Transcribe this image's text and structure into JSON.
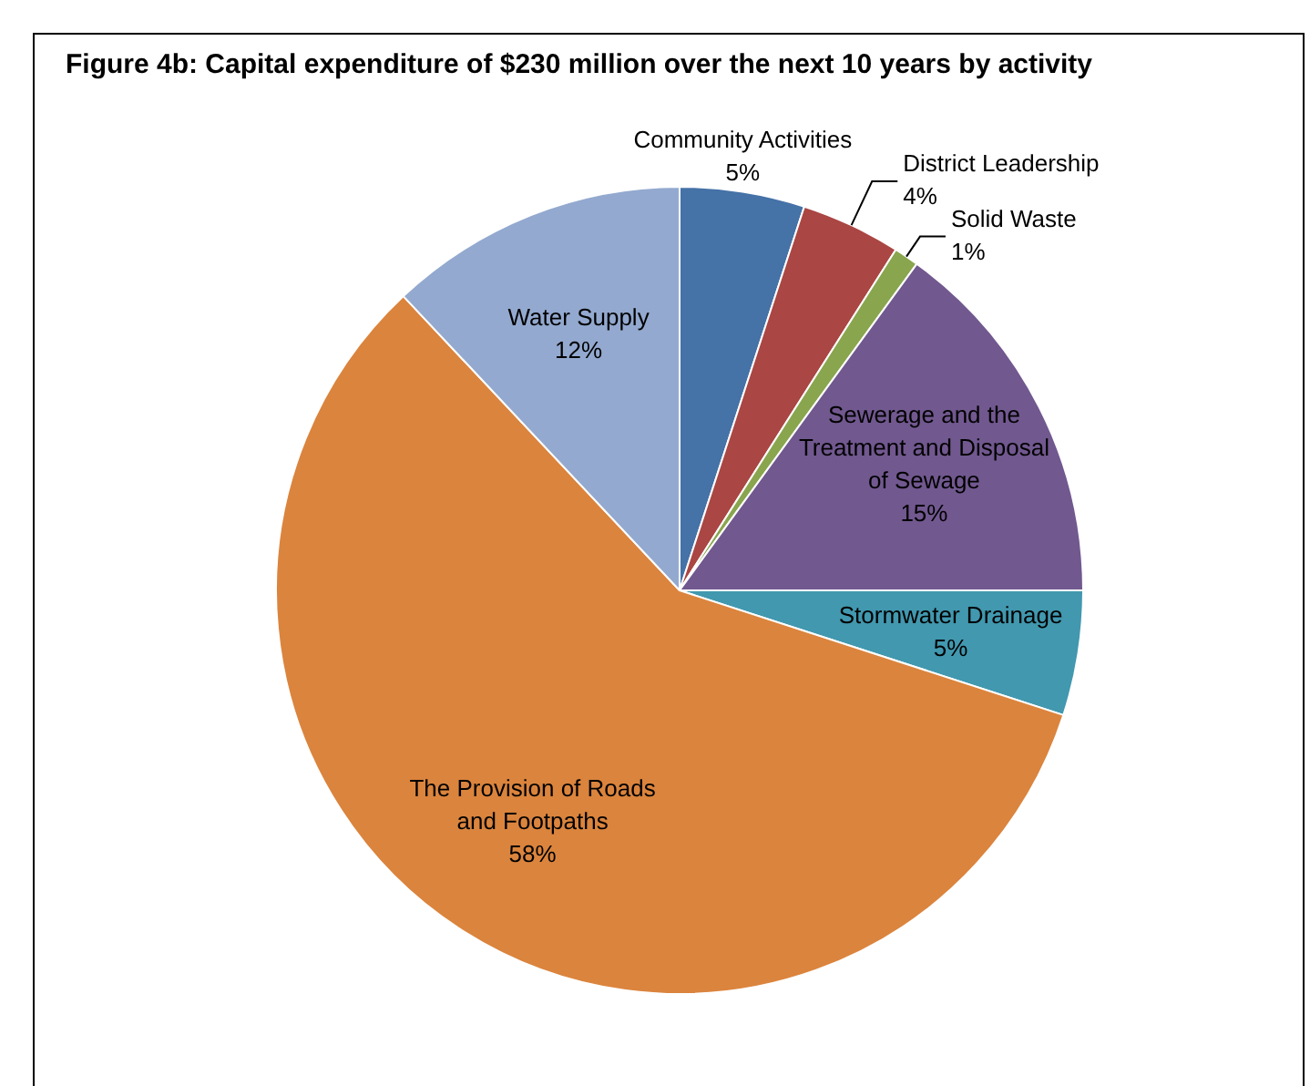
{
  "chart_data": {
    "type": "pie",
    "title": "Figure 4b: Capital expenditure of $230 million over the next 10 years by activity",
    "categories": [
      "Community Activities",
      "District Leadership",
      "Solid Waste",
      "Sewerage and the Treatment and Disposal of Sewage",
      "Stormwater Drainage",
      "The Provision of Roads and Footpaths",
      "Water Supply"
    ],
    "values": [
      5,
      4,
      1,
      15,
      5,
      58,
      12
    ],
    "colors": [
      "#4572a7",
      "#aa4643",
      "#89a54e",
      "#71588f",
      "#4198af",
      "#db843d",
      "#93a9cf"
    ],
    "value_labels": [
      "5%",
      "4%",
      "1%",
      "15%",
      "5%",
      "58%",
      "12%"
    ],
    "legend": false
  }
}
